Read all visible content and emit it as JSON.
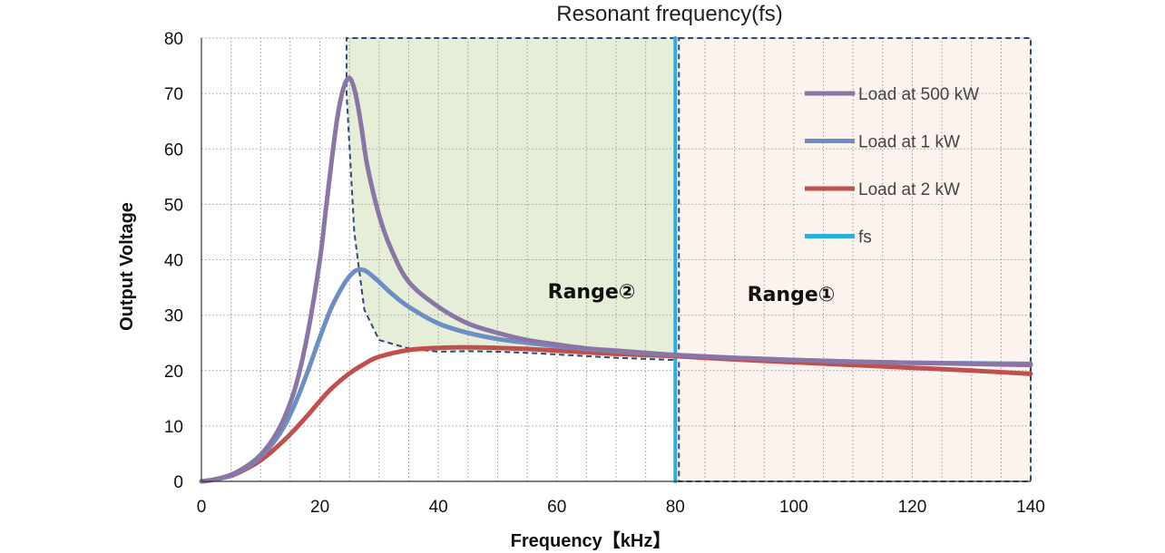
{
  "chart_data": {
    "type": "line",
    "title": "Resonant frequency(fs)",
    "xlabel": "Frequency【kHz】",
    "ylabel": "Output Voltage",
    "xlim": [
      0,
      140
    ],
    "ylim": [
      0,
      80
    ],
    "xticks": [
      0,
      20,
      40,
      60,
      80,
      100,
      120,
      140
    ],
    "yticks": [
      0,
      10,
      20,
      30,
      40,
      50,
      60,
      70,
      80
    ],
    "grid": true,
    "legend_position": "right",
    "series": [
      {
        "name": "Load at 500 kW",
        "color": "#8a76a6",
        "x": [
          0,
          2,
          5,
          8,
          10,
          12,
          14,
          16,
          18,
          20,
          21,
          22,
          23,
          24,
          25,
          26,
          27,
          28,
          30,
          32,
          35,
          40,
          45,
          50,
          55,
          60,
          65,
          70,
          75,
          80,
          90,
          100,
          110,
          120,
          130,
          140
        ],
        "y": [
          0,
          0.3,
          1.2,
          3.0,
          4.8,
          7.5,
          11.5,
          17.5,
          27,
          40,
          49,
          58,
          66,
          71,
          72.8,
          70,
          64,
          57,
          48,
          42,
          36,
          31.5,
          28.5,
          26.8,
          25.5,
          24.7,
          24,
          23.6,
          23.2,
          22.8,
          22.3,
          21.9,
          21.6,
          21.4,
          21.2,
          21.0
        ]
      },
      {
        "name": "Load at 1 kW",
        "color": "#6b8fc4",
        "x": [
          0,
          2,
          5,
          8,
          10,
          12,
          14,
          16,
          18,
          20,
          22,
          24,
          25,
          26,
          27,
          28,
          30,
          32,
          35,
          40,
          45,
          50,
          55,
          60,
          65,
          70,
          75,
          80,
          90,
          100,
          110,
          120,
          130,
          140
        ],
        "y": [
          0,
          0.3,
          1.1,
          2.8,
          4.5,
          6.8,
          10,
          14.5,
          20,
          26,
          31.5,
          35.5,
          37,
          38,
          38.2,
          37.8,
          36,
          34,
          31.5,
          28.5,
          26.8,
          25.7,
          25,
          24.4,
          23.9,
          23.5,
          23.1,
          22.8,
          22.3,
          21.9,
          21.6,
          21.4,
          21.3,
          21.2
        ]
      },
      {
        "name": "Load at 2 kW",
        "color": "#c0504d",
        "x": [
          0,
          2,
          5,
          8,
          10,
          12,
          15,
          18,
          20,
          22,
          25,
          28,
          30,
          35,
          40,
          45,
          50,
          55,
          60,
          65,
          70,
          75,
          80,
          90,
          100,
          110,
          120,
          130,
          140
        ],
        "y": [
          0,
          0.3,
          1.0,
          2.5,
          3.8,
          5.5,
          8.5,
          12,
          14.5,
          16.8,
          19.5,
          21.5,
          22.5,
          23.7,
          24.1,
          24.2,
          24.1,
          23.9,
          23.6,
          23.3,
          23.0,
          22.8,
          22.6,
          22.0,
          21.5,
          21.0,
          20.5,
          20.0,
          19.4
        ]
      },
      {
        "name": "fs",
        "color": "#2aaee0",
        "x": [
          80,
          80
        ],
        "y": [
          0,
          80
        ]
      }
    ],
    "regions": [
      {
        "label": "Range②",
        "color": "#e6eed8",
        "x": [
          24.5,
          80
        ]
      },
      {
        "label": "Range①",
        "color": "#fdf3ee",
        "x": [
          80,
          140
        ]
      }
    ]
  }
}
